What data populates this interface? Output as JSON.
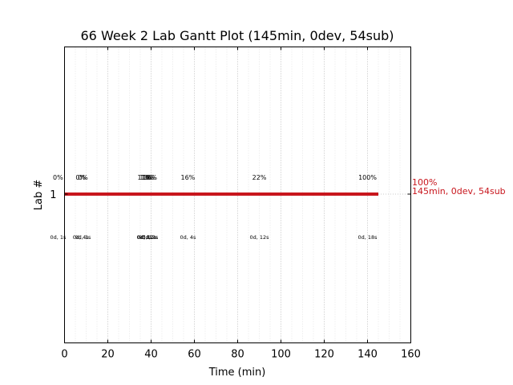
{
  "chart_data": {
    "type": "gantt",
    "title": "66 Week 2 Lab Gantt Plot (145min, 0dev, 54sub)",
    "xlabel": "Time (min)",
    "ylabel": "Lab #",
    "xlim": [
      0,
      160
    ],
    "xticks": [
      0,
      20,
      40,
      60,
      80,
      100,
      120,
      140,
      160
    ],
    "xtick_labels": [
      "0",
      "20",
      "40",
      "60",
      "80",
      "100",
      "120",
      "140",
      "160"
    ],
    "yticks": [
      1
    ],
    "ytick_labels": [
      "1"
    ],
    "grid": "vertical dotted",
    "bar_color": "#c8161d",
    "bars": [
      {
        "lab": 1,
        "start": 0,
        "end": 145
      }
    ],
    "milestones": [
      {
        "x": -3,
        "pct": "0%",
        "time": "0d, 1s"
      },
      {
        "x": 7.5,
        "pct": "0%",
        "time": "0d, 4s"
      },
      {
        "x": 8.5,
        "pct": "0%",
        "time": "0d, 1s"
      },
      {
        "x": 37.0,
        "pct": "11%",
        "time": "0d, 8s"
      },
      {
        "x": 38.0,
        "pct": "13%",
        "time": "0d, 12s"
      },
      {
        "x": 38.8,
        "pct": "16%",
        "time": "0d, 12s"
      },
      {
        "x": 39.5,
        "pct": "16%",
        "time": "0d, 3s"
      },
      {
        "x": 57.0,
        "pct": "16%",
        "time": "0d, 4s"
      },
      {
        "x": 90.0,
        "pct": "22%",
        "time": "0d, 12s"
      },
      {
        "x": 140.0,
        "pct": "100%",
        "time": "0d, 18s"
      }
    ],
    "end_annotation": {
      "line1": "100%",
      "line2": "145min, 0dev, 54sub"
    }
  }
}
